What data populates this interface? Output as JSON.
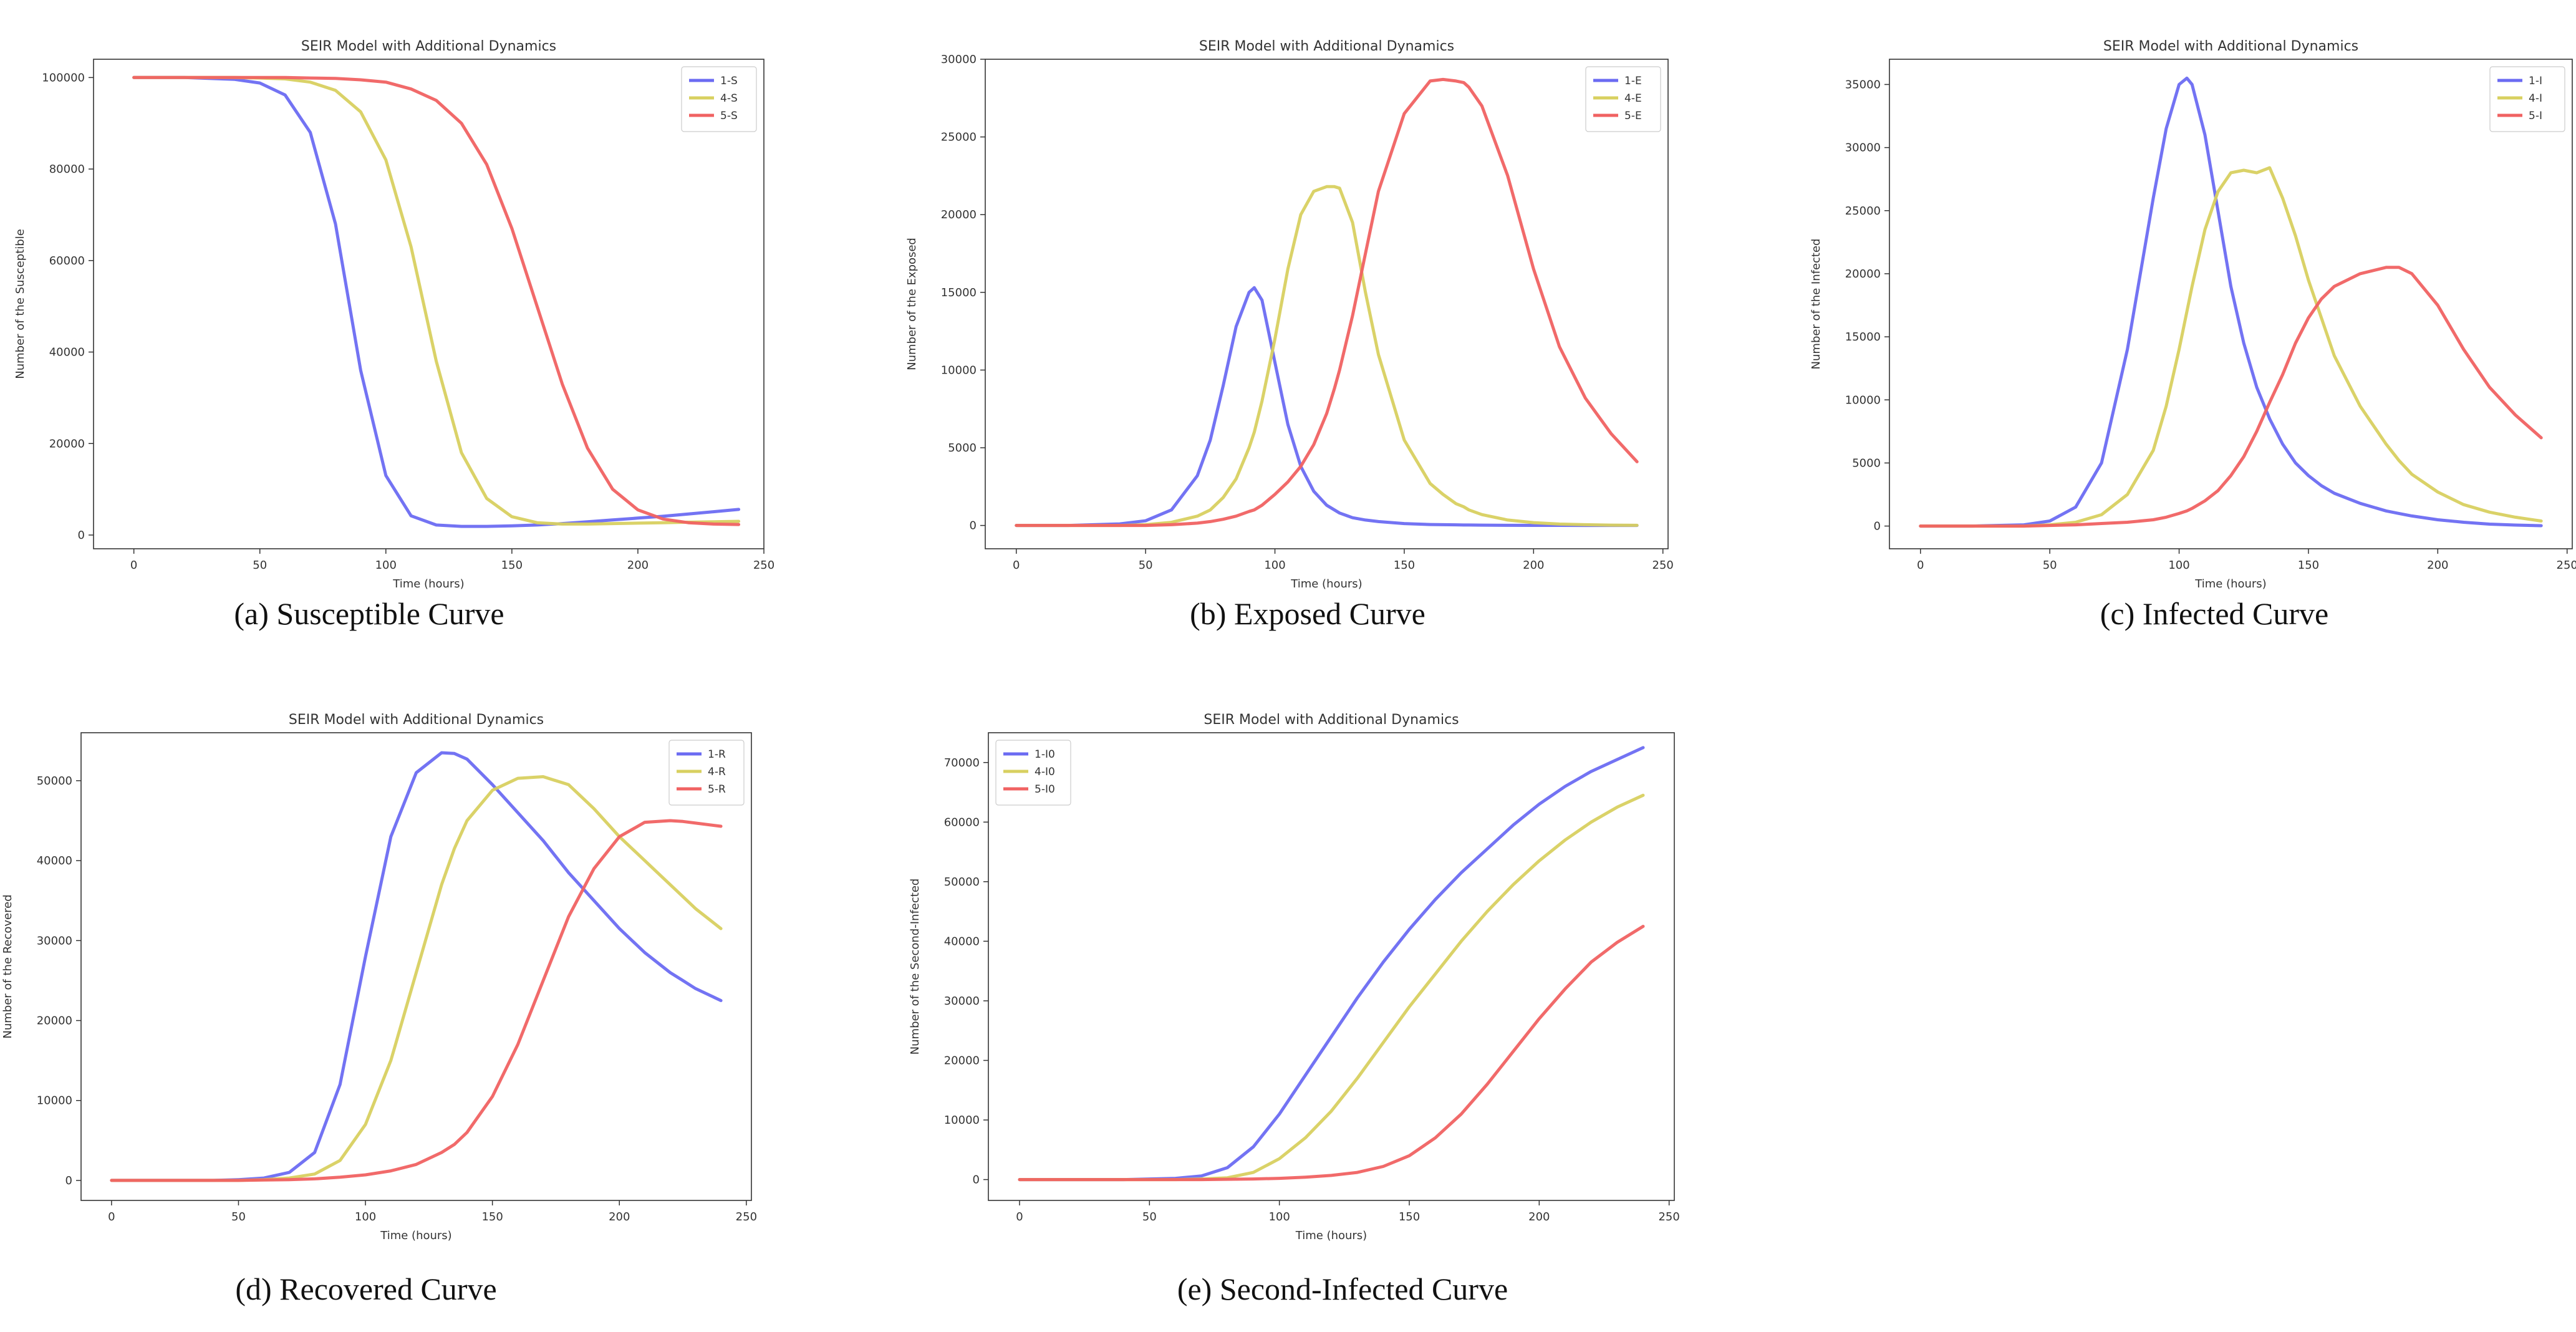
{
  "figure": {
    "captions": [
      "(a) Susceptible Curve",
      "(b) Exposed Curve",
      "(c) Infected Curve",
      "(d) Recovered Curve",
      "(e) Second-Infected Curve"
    ]
  },
  "chart_data": [
    {
      "id": "a",
      "type": "line",
      "title": "SEIR Model with Additional Dynamics",
      "xlabel": "Time (hours)",
      "ylabel": "Number of the Susceptible",
      "xlim": [
        -16,
        250
      ],
      "ylim": [
        -3000,
        104000
      ],
      "xticks": [
        0,
        50,
        100,
        150,
        200,
        250
      ],
      "yticks": [
        0,
        20000,
        40000,
        60000,
        80000,
        100000
      ],
      "legend_position": "top-right",
      "x": [
        0,
        20,
        40,
        50,
        60,
        70,
        80,
        90,
        100,
        110,
        120,
        130,
        140,
        150,
        160,
        170,
        180,
        190,
        200,
        210,
        220,
        230,
        240
      ],
      "series": [
        {
          "name": "1-S",
          "color": "#6b6bf2",
          "values": [
            100000,
            100000,
            99600,
            98800,
            96200,
            88000,
            68000,
            36000,
            13000,
            4200,
            2200,
            1900,
            1900,
            2000,
            2200,
            2500,
            2900,
            3300,
            3700,
            4100,
            4600,
            5100,
            5600
          ]
        },
        {
          "name": "4-S",
          "color": "#d8d060",
          "values": [
            100000,
            100000,
            100000,
            99900,
            99700,
            99000,
            97200,
            92500,
            82000,
            63000,
            38000,
            18000,
            8000,
            4000,
            2700,
            2400,
            2400,
            2500,
            2600,
            2700,
            2800,
            2900,
            3000
          ]
        },
        {
          "name": "5-S",
          "color": "#f06262",
          "values": [
            100000,
            100000,
            100000,
            100000,
            100000,
            99900,
            99800,
            99500,
            99000,
            97500,
            95000,
            90000,
            81000,
            67000,
            50000,
            33000,
            19000,
            10000,
            5500,
            3500,
            2700,
            2400,
            2300
          ]
        }
      ]
    },
    {
      "id": "b",
      "type": "line",
      "title": "SEIR Model with Additional Dynamics",
      "xlabel": "Time (hours)",
      "ylabel": "Number of the Exposed",
      "xlim": [
        -12,
        252
      ],
      "ylim": [
        -1500,
        30000
      ],
      "xticks": [
        0,
        50,
        100,
        150,
        200,
        250
      ],
      "yticks": [
        0,
        5000,
        10000,
        15000,
        20000,
        25000,
        30000
      ],
      "legend_position": "top-right",
      "x": [
        0,
        20,
        40,
        50,
        60,
        70,
        75,
        80,
        85,
        90,
        92,
        95,
        100,
        105,
        110,
        115,
        120,
        123,
        125,
        130,
        135,
        140,
        150,
        160,
        165,
        170,
        173,
        175,
        180,
        190,
        200,
        210,
        220,
        230,
        240
      ],
      "series": [
        {
          "name": "1-E",
          "color": "#6b6bf2",
          "values": [
            0,
            0,
            100,
            300,
            1000,
            3200,
            5500,
            9000,
            12800,
            15000,
            15300,
            14500,
            10500,
            6500,
            3800,
            2200,
            1300,
            1000,
            800,
            500,
            350,
            250,
            120,
            60,
            50,
            40,
            30,
            30,
            20,
            10,
            5,
            5,
            0,
            0,
            0
          ]
        },
        {
          "name": "4-E",
          "color": "#d8d060",
          "values": [
            0,
            0,
            0,
            50,
            200,
            600,
            1000,
            1800,
            3000,
            5000,
            6000,
            8000,
            12000,
            16500,
            20000,
            21500,
            21800,
            21800,
            21700,
            19500,
            15000,
            11000,
            5500,
            2700,
            2000,
            1400,
            1200,
            1000,
            700,
            350,
            180,
            90,
            50,
            20,
            10
          ]
        },
        {
          "name": "5-E",
          "color": "#f06262",
          "values": [
            0,
            0,
            0,
            0,
            50,
            150,
            250,
            400,
            600,
            900,
            1000,
            1300,
            2000,
            2800,
            3800,
            5200,
            7200,
            8800,
            10000,
            13500,
            17500,
            21500,
            26500,
            28600,
            28700,
            28600,
            28500,
            28200,
            27000,
            22500,
            16500,
            11500,
            8200,
            5900,
            4100
          ]
        }
      ]
    },
    {
      "id": "c",
      "type": "line",
      "title": "SEIR Model with Additional Dynamics",
      "xlabel": "Time (hours)",
      "ylabel": "Number of the Infected",
      "xlim": [
        -12,
        252
      ],
      "ylim": [
        -1800,
        37000
      ],
      "xticks": [
        0,
        50,
        100,
        150,
        200,
        250
      ],
      "yticks": [
        0,
        5000,
        10000,
        15000,
        20000,
        25000,
        30000,
        35000
      ],
      "legend_position": "top-right",
      "x": [
        0,
        20,
        40,
        50,
        60,
        70,
        80,
        90,
        95,
        100,
        103,
        105,
        110,
        115,
        120,
        125,
        130,
        135,
        140,
        145,
        150,
        155,
        160,
        170,
        180,
        185,
        190,
        200,
        210,
        220,
        230,
        240
      ],
      "series": [
        {
          "name": "1-I",
          "color": "#6b6bf2",
          "values": [
            0,
            0,
            100,
            400,
            1500,
            5000,
            14000,
            26000,
            31500,
            35000,
            35500,
            35000,
            31000,
            25000,
            19000,
            14500,
            11000,
            8500,
            6500,
            5000,
            4000,
            3200,
            2600,
            1800,
            1200,
            1000,
            800,
            500,
            300,
            150,
            80,
            30
          ]
        },
        {
          "name": "4-I",
          "color": "#d8d060",
          "values": [
            0,
            0,
            0,
            100,
            300,
            900,
            2500,
            6000,
            9500,
            14000,
            17000,
            19000,
            23500,
            26500,
            28000,
            28200,
            28000,
            28400,
            26000,
            23000,
            19500,
            16500,
            13500,
            9500,
            6500,
            5200,
            4100,
            2700,
            1700,
            1100,
            700,
            400
          ]
        },
        {
          "name": "5-I",
          "color": "#f06262",
          "values": [
            0,
            0,
            0,
            50,
            100,
            200,
            300,
            500,
            700,
            1000,
            1200,
            1400,
            2000,
            2800,
            4000,
            5500,
            7500,
            9800,
            12000,
            14500,
            16500,
            18000,
            19000,
            20000,
            20500,
            20500,
            20000,
            17500,
            14000,
            11000,
            8800,
            7000
          ]
        }
      ]
    },
    {
      "id": "d",
      "type": "line",
      "title": "SEIR Model with Additional Dynamics",
      "xlabel": "Time (hours)",
      "ylabel": "Number of the Recovered",
      "xlim": [
        -12,
        252
      ],
      "ylim": [
        -2500,
        56000
      ],
      "xticks": [
        0,
        50,
        100,
        150,
        200,
        250
      ],
      "yticks": [
        0,
        10000,
        20000,
        30000,
        40000,
        50000
      ],
      "legend_position": "top-right",
      "x": [
        0,
        20,
        40,
        50,
        60,
        70,
        80,
        90,
        100,
        110,
        120,
        130,
        135,
        140,
        150,
        160,
        170,
        180,
        190,
        200,
        210,
        220,
        225,
        230,
        240
      ],
      "series": [
        {
          "name": "1-R",
          "color": "#6b6bf2",
          "values": [
            0,
            0,
            0,
            100,
            300,
            1000,
            3500,
            12000,
            28000,
            43000,
            51000,
            53500,
            53400,
            52700,
            49500,
            46000,
            42500,
            38500,
            35000,
            31500,
            28500,
            26000,
            25000,
            24000,
            22500
          ]
        },
        {
          "name": "4-R",
          "color": "#d8d060",
          "values": [
            0,
            0,
            0,
            0,
            100,
            300,
            800,
            2500,
            7000,
            15000,
            26000,
            37000,
            41500,
            45000,
            48800,
            50300,
            50500,
            49500,
            46500,
            43000,
            40000,
            37000,
            35500,
            34000,
            31500
          ]
        },
        {
          "name": "5-R",
          "color": "#f06262",
          "values": [
            0,
            0,
            0,
            0,
            50,
            100,
            200,
            400,
            700,
            1200,
            2000,
            3500,
            4500,
            6000,
            10500,
            17000,
            25000,
            33000,
            39000,
            43000,
            44800,
            45000,
            44900,
            44700,
            44300
          ]
        }
      ]
    },
    {
      "id": "e",
      "type": "line",
      "title": "SEIR Model with Additional Dynamics",
      "xlabel": "Time (hours)",
      "ylabel": "Number of the Second-Infected",
      "xlim": [
        -12,
        252
      ],
      "ylim": [
        -3500,
        75000
      ],
      "xticks": [
        0,
        50,
        100,
        150,
        200,
        250
      ],
      "yticks": [
        0,
        10000,
        20000,
        30000,
        40000,
        50000,
        60000,
        70000
      ],
      "legend_position": "top-left",
      "x": [
        0,
        20,
        40,
        60,
        70,
        80,
        90,
        100,
        110,
        120,
        130,
        140,
        150,
        160,
        170,
        180,
        190,
        200,
        210,
        220,
        230,
        240
      ],
      "series": [
        {
          "name": "1-I0",
          "color": "#6b6bf2",
          "values": [
            0,
            0,
            0,
            200,
            600,
            2000,
            5500,
            11000,
            17500,
            24000,
            30500,
            36500,
            42000,
            47000,
            51500,
            55500,
            59500,
            63000,
            66000,
            68500,
            70500,
            72500
          ]
        },
        {
          "name": "4-I0",
          "color": "#d8d060",
          "values": [
            0,
            0,
            0,
            0,
            100,
            300,
            1200,
            3500,
            7000,
            11500,
            17000,
            23000,
            29000,
            34500,
            40000,
            45000,
            49500,
            53500,
            57000,
            60000,
            62500,
            64500
          ]
        },
        {
          "name": "5-I0",
          "color": "#f06262",
          "values": [
            0,
            0,
            0,
            0,
            0,
            50,
            100,
            200,
            400,
            700,
            1200,
            2200,
            4000,
            7000,
            11000,
            16000,
            21500,
            27000,
            32000,
            36500,
            39800,
            42500
          ]
        }
      ]
    }
  ]
}
